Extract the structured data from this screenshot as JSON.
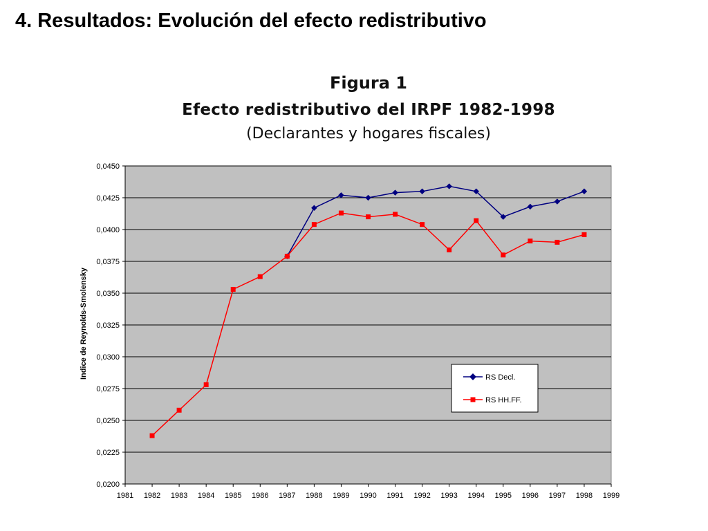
{
  "slide": {
    "title": "4. Resultados: Evolución del efecto redistributivo"
  },
  "figure": {
    "label": "Figura 1",
    "title": "Efecto redistributivo del IRPF 1982-1998",
    "subtitle": "(Declarantes y hogares fiscales)"
  },
  "chart_data": {
    "type": "line",
    "ylabel": "Indice de Reynolds-Smolensky",
    "xlabel": "",
    "xlim": [
      1981,
      1999
    ],
    "ylim": [
      0.02,
      0.045
    ],
    "x_ticks": [
      "1981",
      "1982",
      "1983",
      "1984",
      "1985",
      "1986",
      "1987",
      "1988",
      "1989",
      "1990",
      "1991",
      "1992",
      "1993",
      "1994",
      "1995",
      "1996",
      "1997",
      "1998",
      "1999"
    ],
    "y_ticks": [
      "0,0200",
      "0,0225",
      "0,0250",
      "0,0275",
      "0,0300",
      "0,0325",
      "0,0350",
      "0,0375",
      "0,0400",
      "0,0425",
      "0,0450"
    ],
    "grid": "horizontal",
    "plot_background": "#c0c0c0",
    "legend_position": "lower-right",
    "series": [
      {
        "name": "RS Decl.",
        "color": "#000080",
        "marker": "diamond",
        "x": [
          1987,
          1988,
          1989,
          1990,
          1991,
          1992,
          1993,
          1994,
          1995,
          1996,
          1997,
          1998
        ],
        "values": [
          0.0379,
          0.0417,
          0.0427,
          0.0425,
          0.0429,
          0.043,
          0.0434,
          0.043,
          0.041,
          0.0418,
          0.0422,
          0.043
        ]
      },
      {
        "name": "RS HH.FF.",
        "color": "#ff0000",
        "marker": "square",
        "x": [
          1982,
          1983,
          1984,
          1985,
          1986,
          1987,
          1988,
          1989,
          1990,
          1991,
          1992,
          1993,
          1994,
          1995,
          1996,
          1997,
          1998
        ],
        "values": [
          0.0238,
          0.0258,
          0.0278,
          0.0353,
          0.0363,
          0.0379,
          0.0404,
          0.0413,
          0.041,
          0.0412,
          0.0404,
          0.0384,
          0.0407,
          0.038,
          0.0391,
          0.039,
          0.0396
        ]
      }
    ]
  }
}
